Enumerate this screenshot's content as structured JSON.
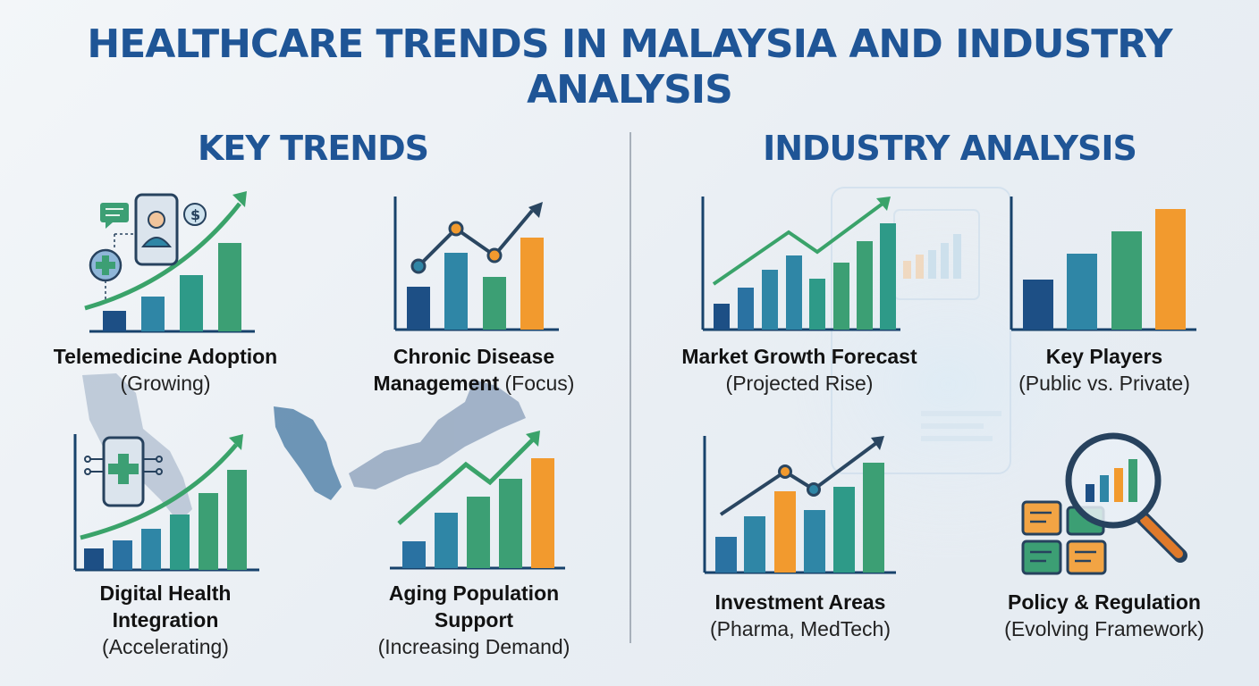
{
  "title": "HEALTHCARE TRENDS IN MALAYSIA AND INDUSTRY ANALYSIS",
  "key_trends": {
    "heading": "KEY TRENDS",
    "items": [
      {
        "name": "Telemedicine Adoption",
        "status": "(Growing)"
      },
      {
        "name_line1": "Chronic Disease",
        "name_line2": "Management",
        "status": "(Focus)"
      },
      {
        "name_line1": "Digital Health",
        "name_line2": "Integration",
        "status": "(Accelerating)"
      },
      {
        "name_line1": "Aging Population",
        "name_line2": "Support",
        "status": "(Increasing Demand)"
      }
    ]
  },
  "industry_analysis": {
    "heading": "INDUSTRY ANALYSIS",
    "items": [
      {
        "name": "Market Growth Forecast",
        "status": "(Projected Rise)"
      },
      {
        "name": "Key Players",
        "status": "(Public vs. Private)"
      },
      {
        "name": "Investment Areas",
        "status": "(Pharma, MedTech)"
      },
      {
        "name": "Policy & Regulation",
        "status": "(Evolving Framework)"
      }
    ]
  },
  "colors": {
    "title": "#1f5596",
    "navy": "#1d4f85",
    "teal": "#2f86a6",
    "green": "#3c9f74",
    "orange": "#f29a2e",
    "map": "#8fa3bd"
  },
  "icons": [
    "chat-bubble-icon",
    "doctor-phone-icon",
    "dollar-coin-icon",
    "medical-cross-icon",
    "circuit-phone-icon",
    "magnifier-icon",
    "document-stack-icon"
  ]
}
